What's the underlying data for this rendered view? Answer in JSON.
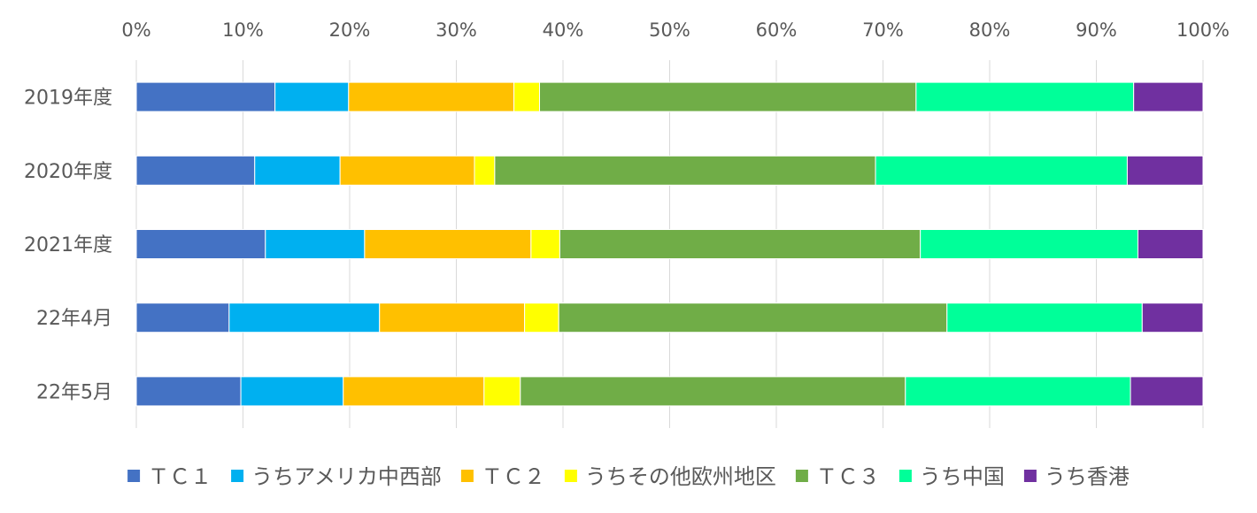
{
  "chart_data": {
    "type": "bar",
    "orientation": "horizontal",
    "stacked": "percent",
    "categories": [
      "2019年度",
      "2020年度",
      "2021年度",
      "22年4月",
      "22年5月"
    ],
    "x_ticks": [
      "0%",
      "10%",
      "20%",
      "30%",
      "40%",
      "50%",
      "60%",
      "70%",
      "80%",
      "90%",
      "100%"
    ],
    "xlim": [
      0,
      100
    ],
    "x_axis_position": "top",
    "grid": true,
    "legend_position": "bottom",
    "series": [
      {
        "name": "ＴＣ１",
        "color": "#4472C4",
        "values": [
          13.0,
          11.1,
          12.1,
          8.7,
          9.8
        ]
      },
      {
        "name": "うちアメリカ中西部",
        "color": "#00B0F0",
        "values": [
          6.9,
          8.0,
          9.3,
          14.1,
          9.6
        ]
      },
      {
        "name": "ＴＣ２",
        "color": "#FFC000",
        "values": [
          15.5,
          12.6,
          15.6,
          13.6,
          13.2
        ]
      },
      {
        "name": "うちその他欧州地区",
        "color": "#FFFF00",
        "values": [
          2.4,
          1.9,
          2.7,
          3.2,
          3.4
        ]
      },
      {
        "name": "ＴＣ３",
        "color": "#70AD47",
        "values": [
          35.3,
          35.7,
          33.8,
          36.4,
          36.1
        ]
      },
      {
        "name": "うち中国",
        "color": "#00FF99",
        "values": [
          20.4,
          23.6,
          20.4,
          18.3,
          21.1
        ]
      },
      {
        "name": "うち香港",
        "color": "#7030A0",
        "values": [
          6.5,
          7.1,
          6.1,
          5.7,
          6.8
        ]
      }
    ]
  }
}
